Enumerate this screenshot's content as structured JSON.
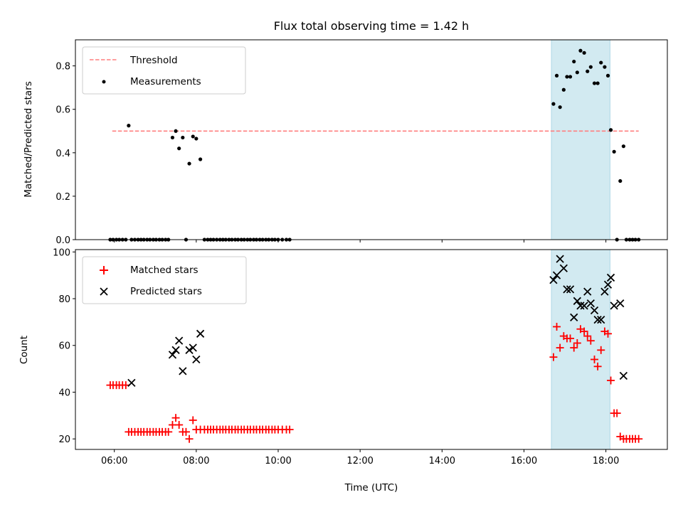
{
  "chart_data": {
    "title": "Flux total observing time = 1.42 h",
    "type": "scatter",
    "x_unit": "hours (UTC)",
    "xlabel": "Time (UTC)",
    "xlim": [
      5.05,
      19.5
    ],
    "x_ticks": [
      {
        "value": 6,
        "label": "06:00"
      },
      {
        "value": 8,
        "label": "08:00"
      },
      {
        "value": 10,
        "label": "10:00"
      },
      {
        "value": 12,
        "label": "12:00"
      },
      {
        "value": 14,
        "label": "14:00"
      },
      {
        "value": 16,
        "label": "16:00"
      },
      {
        "value": 18,
        "label": "18:00"
      }
    ],
    "observing_window": {
      "start": 16.67,
      "end": 18.1,
      "color": "#add8e6"
    },
    "panels": [
      {
        "name": "ratio",
        "ylabel": "Matched/Predicted stars",
        "ylim": [
          0,
          0.92
        ],
        "y_ticks": [
          {
            "value": 0.0,
            "label": "0.0"
          },
          {
            "value": 0.2,
            "label": "0.2"
          },
          {
            "value": 0.4,
            "label": "0.4"
          },
          {
            "value": 0.6,
            "label": "0.6"
          },
          {
            "value": 0.8,
            "label": "0.8"
          }
        ],
        "legend_position": "top-left",
        "threshold": {
          "label": "Threshold",
          "value": 0.5,
          "x_range": [
            5.95,
            18.8
          ],
          "color": "#ff7f7f"
        },
        "series": [
          {
            "name": "Measurements",
            "color": "#000000",
            "marker": "dot",
            "x": [
              5.9,
              5.97,
              6.05,
              6.12,
              6.2,
              6.28,
              6.35,
              6.42,
              6.5,
              6.58,
              6.65,
              6.72,
              6.8,
              6.87,
              6.95,
              7.02,
              7.1,
              7.17,
              7.25,
              7.32,
              7.42,
              7.5,
              7.58,
              7.67,
              7.75,
              7.83,
              7.92,
              8.0,
              8.1,
              8.2,
              8.28,
              8.35,
              8.42,
              8.5,
              8.58,
              8.65,
              8.72,
              8.8,
              8.87,
              8.95,
              9.02,
              9.1,
              9.17,
              9.25,
              9.32,
              9.4,
              9.47,
              9.55,
              9.62,
              9.7,
              9.77,
              9.85,
              9.92,
              10.0,
              10.1,
              10.2,
              10.28,
              16.72,
              16.8,
              16.88,
              16.97,
              17.05,
              17.13,
              17.22,
              17.3,
              17.38,
              17.47,
              17.55,
              17.63,
              17.72,
              17.8,
              17.88,
              17.97,
              18.05,
              18.12,
              18.2,
              18.27,
              18.35,
              18.43,
              18.5,
              18.58,
              18.65,
              18.72,
              18.8
            ],
            "y": [
              0,
              0,
              0,
              0,
              0,
              0,
              0.525,
              0,
              0,
              0,
              0,
              0,
              0,
              0,
              0,
              0,
              0,
              0,
              0,
              0,
              0.47,
              0.5,
              0.42,
              0.47,
              0,
              0.35,
              0.475,
              0.465,
              0.37,
              0,
              0,
              0,
              0,
              0,
              0,
              0,
              0,
              0,
              0,
              0,
              0,
              0,
              0,
              0,
              0,
              0,
              0,
              0,
              0,
              0,
              0,
              0,
              0,
              0,
              0,
              0,
              0,
              0.625,
              0.755,
              0.61,
              0.69,
              0.75,
              0.75,
              0.82,
              0.77,
              0.87,
              0.86,
              0.775,
              0.795,
              0.72,
              0.72,
              0.815,
              0.795,
              0.755,
              0.505,
              0.405,
              0,
              0.27,
              0.43,
              0,
              0,
              0,
              0,
              0
            ]
          }
        ]
      },
      {
        "name": "count",
        "ylabel": "Count",
        "ylim": [
          15.5,
          101
        ],
        "y_ticks": [
          {
            "value": 20,
            "label": "20"
          },
          {
            "value": 40,
            "label": "40"
          },
          {
            "value": 60,
            "label": "60"
          },
          {
            "value": 80,
            "label": "80"
          },
          {
            "value": 100,
            "label": "100"
          }
        ],
        "legend_position": "top-left",
        "series": [
          {
            "name": "Matched stars",
            "color": "#ff0000",
            "marker": "plus",
            "x": [
              5.9,
              5.97,
              6.05,
              6.12,
              6.2,
              6.28,
              6.35,
              6.42,
              6.5,
              6.58,
              6.65,
              6.72,
              6.8,
              6.87,
              6.95,
              7.02,
              7.1,
              7.17,
              7.25,
              7.32,
              7.42,
              7.5,
              7.58,
              7.67,
              7.75,
              7.83,
              7.92,
              8.0,
              8.1,
              8.2,
              8.28,
              8.35,
              8.42,
              8.5,
              8.58,
              8.65,
              8.72,
              8.8,
              8.87,
              8.95,
              9.02,
              9.1,
              9.17,
              9.25,
              9.32,
              9.4,
              9.47,
              9.55,
              9.62,
              9.7,
              9.77,
              9.85,
              9.92,
              10.0,
              10.1,
              10.2,
              10.28,
              16.72,
              16.8,
              16.88,
              16.97,
              17.05,
              17.13,
              17.22,
              17.3,
              17.38,
              17.47,
              17.55,
              17.63,
              17.72,
              17.8,
              17.88,
              17.97,
              18.05,
              18.12,
              18.2,
              18.27,
              18.35,
              18.43,
              18.5,
              18.58,
              18.65,
              18.72,
              18.8
            ],
            "y": [
              43,
              43,
              43,
              43,
              43,
              43,
              23,
              23,
              23,
              23,
              23,
              23,
              23,
              23,
              23,
              23,
              23,
              23,
              23,
              23,
              26,
              29,
              26,
              23,
              23,
              20,
              28,
              24,
              24,
              24,
              24,
              24,
              24,
              24,
              24,
              24,
              24,
              24,
              24,
              24,
              24,
              24,
              24,
              24,
              24,
              24,
              24,
              24,
              24,
              24,
              24,
              24,
              24,
              24,
              24,
              24,
              24,
              55,
              68,
              59,
              64,
              63,
              63,
              59,
              61,
              67,
              66,
              64,
              62,
              54,
              51,
              58,
              66,
              65,
              45,
              31,
              31,
              21,
              20,
              20,
              20,
              20,
              20,
              20
            ]
          },
          {
            "name": "Predicted stars",
            "color": "#000000",
            "marker": "x",
            "x": [
              6.42,
              7.42,
              7.5,
              7.58,
              7.67,
              7.83,
              7.92,
              8.0,
              8.1,
              16.72,
              16.8,
              16.88,
              16.97,
              17.05,
              17.13,
              17.22,
              17.3,
              17.38,
              17.47,
              17.55,
              17.63,
              17.72,
              17.8,
              17.88,
              17.97,
              18.05,
              18.12,
              18.2,
              18.35,
              18.43
            ],
            "y": [
              44,
              56,
              58,
              62,
              49,
              58,
              59,
              54,
              65,
              88,
              90,
              97,
              93,
              84,
              84,
              72,
              79,
              77,
              77,
              83,
              78,
              75,
              71,
              71,
              83,
              86,
              89,
              77,
              78,
              47
            ]
          }
        ]
      }
    ]
  }
}
